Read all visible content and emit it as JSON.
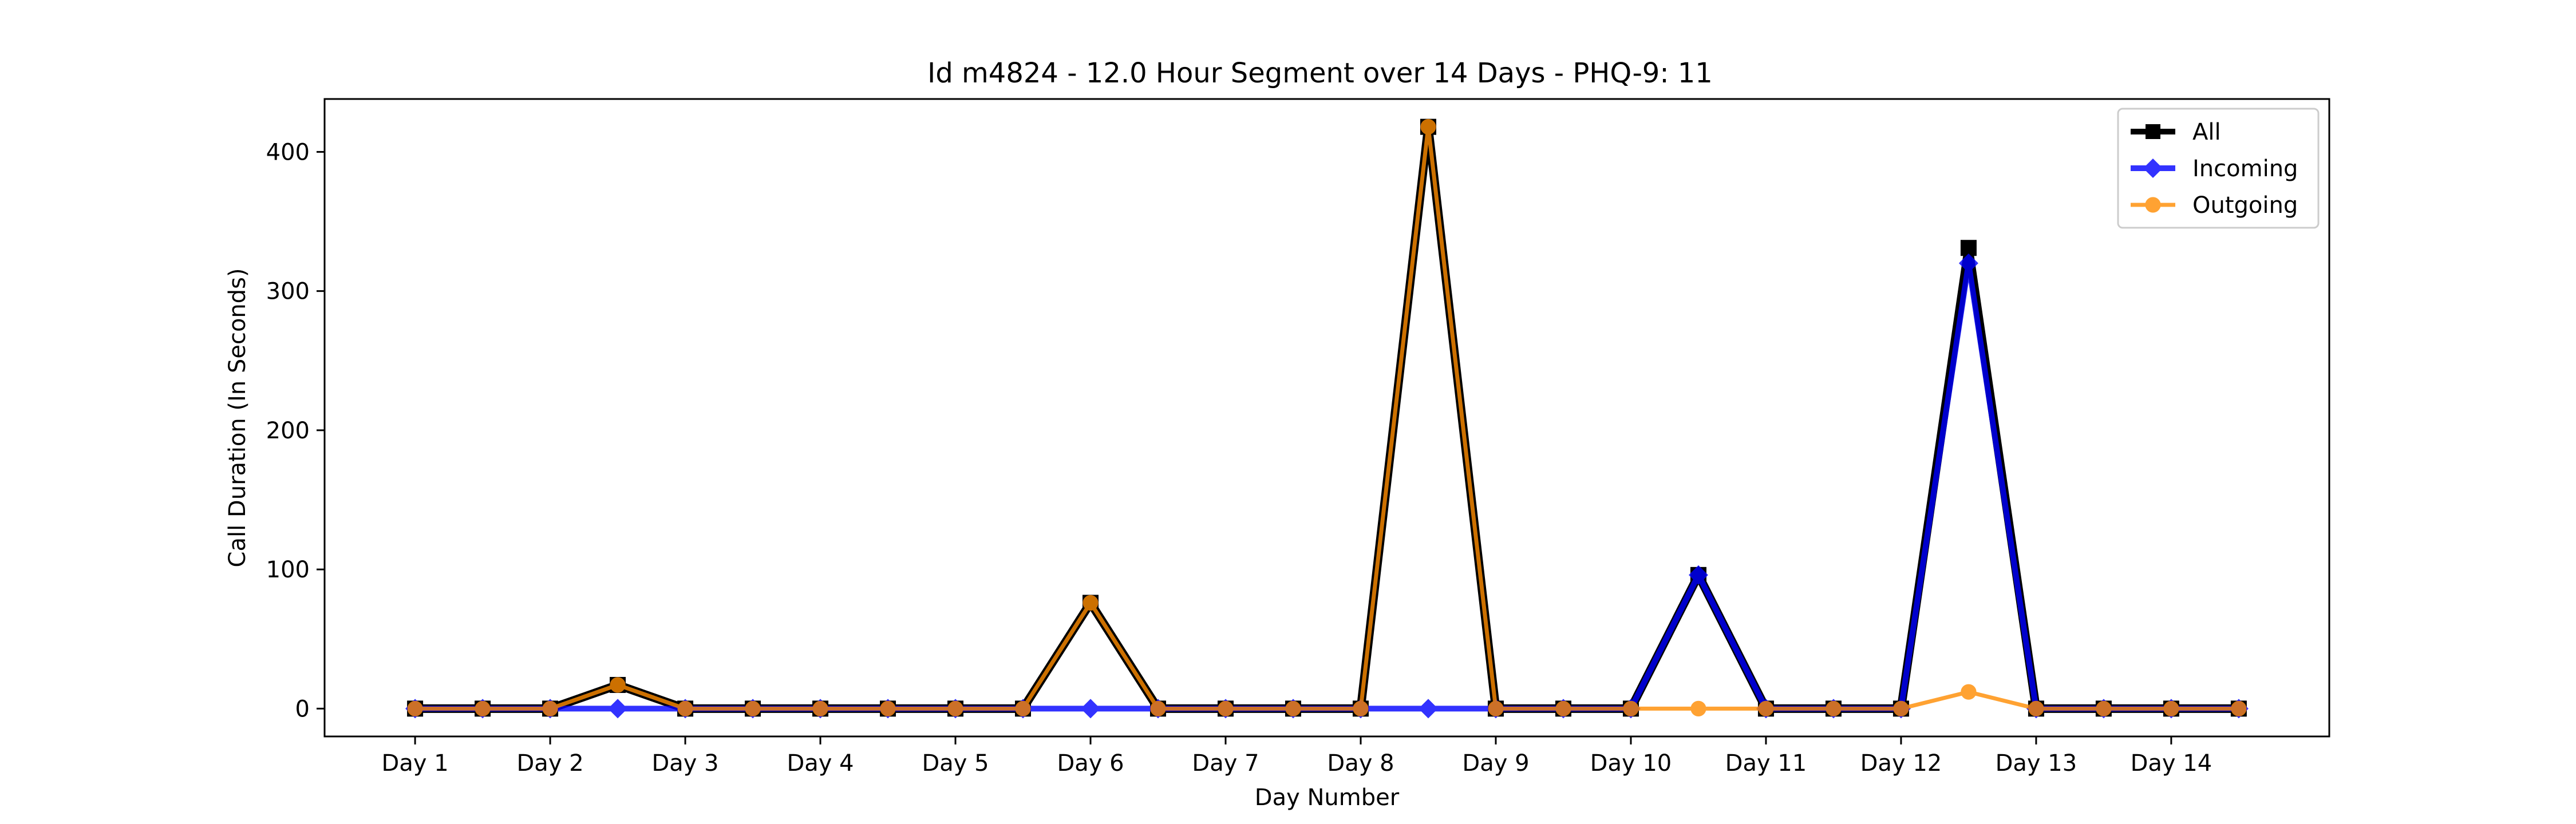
{
  "chart_data": {
    "type": "line",
    "title": "Id m4824 - 12.0 Hour Segment over 14 Days - PHQ-9: 11",
    "xlabel": "Day Number",
    "ylabel": "Call Duration (In Seconds)",
    "x": [
      1,
      1.5,
      2,
      2.5,
      3,
      3.5,
      4,
      4.5,
      5,
      5.5,
      6,
      6.5,
      7,
      7.5,
      8,
      8.5,
      9,
      9.5,
      10,
      10.5,
      11,
      11.5,
      12,
      12.5,
      13,
      13.5,
      14,
      14.5
    ],
    "xticks": [
      1,
      2,
      3,
      4,
      5,
      6,
      7,
      8,
      9,
      10,
      11,
      12,
      13,
      14
    ],
    "xtick_labels": [
      "Day 1",
      "Day 2",
      "Day 3",
      "Day 4",
      "Day 5",
      "Day 6",
      "Day 7",
      "Day 8",
      "Day 9",
      "Day 10",
      "Day 11",
      "Day 12",
      "Day 13",
      "Day 14"
    ],
    "xlim": [
      0.33,
      15.17
    ],
    "yticks": [
      0,
      100,
      200,
      300,
      400
    ],
    "ytick_labels": [
      "0",
      "100",
      "200",
      "300",
      "400"
    ],
    "ylim": [
      -20,
      438
    ],
    "grid": false,
    "legend_position": "top-right",
    "series": [
      {
        "name": "All",
        "color": "#000000",
        "marker": "square",
        "values": [
          0,
          0,
          0,
          17,
          0,
          0,
          0,
          0,
          0,
          0,
          76,
          0,
          0,
          0,
          0,
          418,
          0,
          0,
          0,
          96,
          0,
          0,
          0,
          331,
          0,
          0,
          0,
          0
        ]
      },
      {
        "name": "Incoming",
        "color": "#0000ff",
        "marker": "diamond",
        "values": [
          0,
          0,
          0,
          0,
          0,
          0,
          0,
          0,
          0,
          0,
          0,
          0,
          0,
          0,
          0,
          0,
          0,
          0,
          0,
          96,
          0,
          0,
          0,
          320,
          0,
          0,
          0,
          0
        ]
      },
      {
        "name": "Outgoing",
        "color": "#ff8c00",
        "marker": "circle",
        "values": [
          0,
          0,
          0,
          17,
          0,
          0,
          0,
          0,
          0,
          0,
          76,
          0,
          0,
          0,
          0,
          418,
          0,
          0,
          0,
          0,
          0,
          0,
          0,
          12,
          0,
          0,
          0,
          0
        ]
      }
    ]
  }
}
